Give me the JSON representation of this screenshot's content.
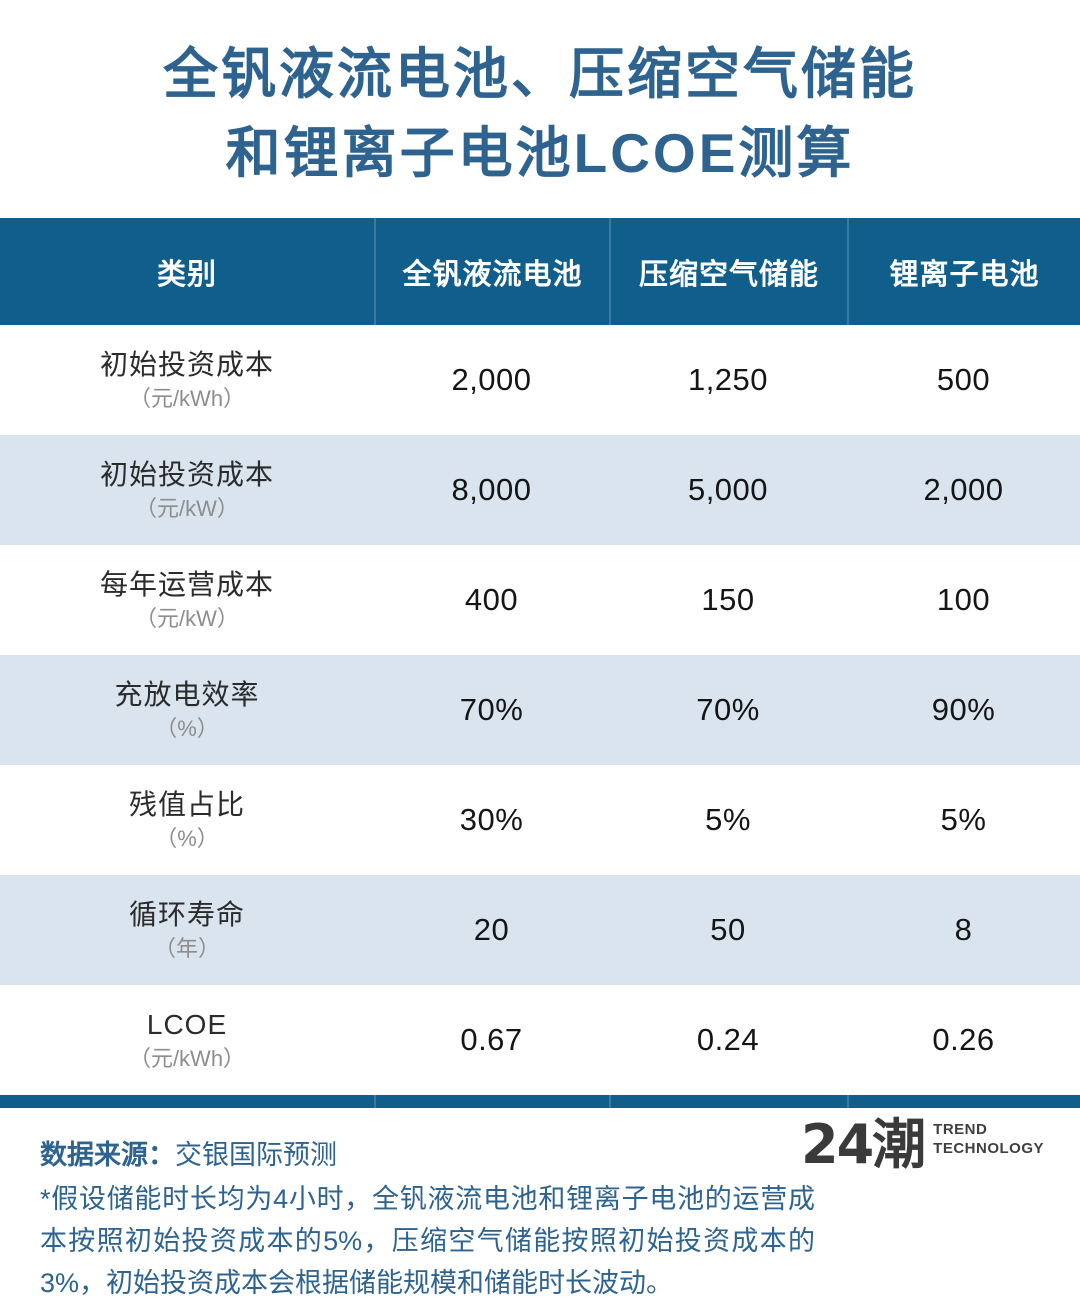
{
  "title": {
    "line1": "全钒液流电池、压缩空气储能",
    "line2": "和锂离子电池LCOE测算"
  },
  "colors": {
    "header_blue": "#0F5E8C",
    "row_alt_blue": "#D9E4EF",
    "title_blue": "#2E6390",
    "value_text": "#151515",
    "unit_gray": "#8D8D8D",
    "logo_gray": "#3A3A3A"
  },
  "table": {
    "columns": [
      "类别",
      "全钒液流电池",
      "压缩空气储能",
      "锂离子电池"
    ],
    "rows": [
      {
        "label": "初始投资成本",
        "unit": "（元/kWh）",
        "values": [
          "2,000",
          "1,250",
          "500"
        ]
      },
      {
        "label": "初始投资成本",
        "unit": "（元/kW）",
        "values": [
          "8,000",
          "5,000",
          "2,000"
        ]
      },
      {
        "label": "每年运营成本",
        "unit": "（元/kW）",
        "values": [
          "400",
          "150",
          "100"
        ]
      },
      {
        "label": "充放电效率",
        "unit": "（%）",
        "values": [
          "70%",
          "70%",
          "90%"
        ]
      },
      {
        "label": "残值占比",
        "unit": "（%）",
        "values": [
          "30%",
          "5%",
          "5%"
        ]
      },
      {
        "label": "循环寿命",
        "unit": "（年）",
        "values": [
          "20",
          "50",
          "8"
        ]
      },
      {
        "label": "LCOE",
        "unit": "（元/kWh）",
        "values": [
          "0.67",
          "0.24",
          "0.26"
        ]
      }
    ]
  },
  "chart_data": {
    "type": "table",
    "title": "全钒液流电池、压缩空气储能和锂离子电池LCOE测算",
    "columns": [
      "类别",
      "全钒液流电池",
      "压缩空气储能",
      "锂离子电池"
    ],
    "metrics": [
      {
        "name": "初始投资成本",
        "unit": "元/kWh",
        "values": [
          2000,
          1250,
          500
        ]
      },
      {
        "name": "初始投资成本",
        "unit": "元/kW",
        "values": [
          8000,
          5000,
          2000
        ]
      },
      {
        "name": "每年运营成本",
        "unit": "元/kW",
        "values": [
          400,
          150,
          100
        ]
      },
      {
        "name": "充放电效率",
        "unit": "%",
        "values": [
          70,
          70,
          90
        ]
      },
      {
        "name": "残值占比",
        "unit": "%",
        "values": [
          30,
          5,
          5
        ]
      },
      {
        "name": "循环寿命",
        "unit": "年",
        "values": [
          20,
          50,
          8
        ]
      },
      {
        "name": "LCOE",
        "unit": "元/kWh",
        "values": [
          0.67,
          0.24,
          0.26
        ]
      }
    ],
    "source": "交银国际预测"
  },
  "footer": {
    "source_label": "数据来源：",
    "source_value": "交银国际预测",
    "note": "*假设储能时长均为4小时，全钒液流电池和锂离子电池的运营成本按照初始投资成本的5%，压缩空气储能按照初始投资成本的3%，初始投资成本会根据储能规模和储能时长波动。",
    "logo_text": "24潮",
    "logo_sub1": "TREND",
    "logo_sub2": "TECHNOLOGY"
  }
}
